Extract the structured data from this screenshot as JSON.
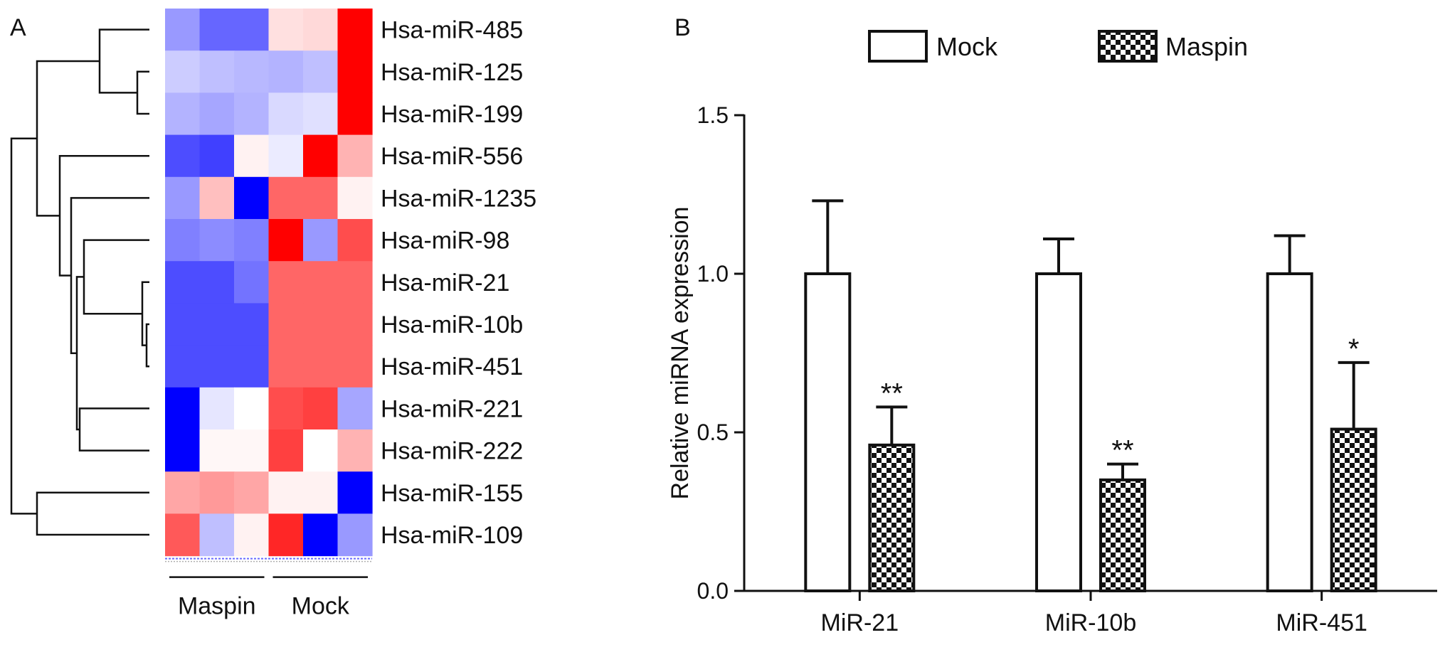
{
  "panels": {
    "a": "A",
    "b": "B"
  },
  "chart_data": [
    {
      "type": "heatmap",
      "rows": [
        "Hsa-miR-485",
        "Hsa-miR-125",
        "Hsa-miR-199",
        "Hsa-miR-556",
        "Hsa-miR-1235",
        "Hsa-miR-98",
        "Hsa-miR-21",
        "Hsa-miR-10b",
        "Hsa-miR-451",
        "Hsa-miR-221",
        "Hsa-miR-222",
        "Hsa-miR-155",
        "Hsa-miR-109"
      ],
      "column_groups": [
        {
          "name": "Maspin",
          "columns": 3
        },
        {
          "name": "Mock",
          "columns": 3
        }
      ],
      "values": [
        [
          -0.4,
          -0.6,
          -0.6,
          0.12,
          0.15,
          1.0
        ],
        [
          -0.2,
          -0.25,
          -0.28,
          -0.3,
          -0.25,
          1.0
        ],
        [
          -0.3,
          -0.35,
          -0.3,
          -0.15,
          -0.12,
          1.0
        ],
        [
          -0.7,
          -0.75,
          0.05,
          -0.08,
          1.0,
          0.3
        ],
        [
          -0.4,
          0.25,
          -1.0,
          0.6,
          0.6,
          0.05
        ],
        [
          -0.5,
          -0.45,
          -0.5,
          1.0,
          -0.4,
          0.7
        ],
        [
          -0.7,
          -0.7,
          -0.55,
          0.6,
          0.6,
          0.6
        ],
        [
          -0.7,
          -0.7,
          -0.7,
          0.6,
          0.6,
          0.6
        ],
        [
          -0.7,
          -0.7,
          -0.7,
          0.6,
          0.6,
          0.6
        ],
        [
          -1.0,
          -0.1,
          0.0,
          0.7,
          0.75,
          -0.35
        ],
        [
          -1.0,
          0.03,
          0.03,
          0.75,
          0.0,
          0.3
        ],
        [
          0.35,
          0.4,
          0.35,
          0.05,
          0.05,
          -1.0
        ],
        [
          0.65,
          -0.25,
          0.05,
          0.85,
          -1.0,
          -0.4
        ]
      ],
      "colors": {
        "low": "#0000ff",
        "mid": "#ffffff",
        "high": "#ff0000"
      },
      "dendrogram": "row clustering tree (left)"
    },
    {
      "type": "bar",
      "categories": [
        "MiR-21",
        "MiR-10b",
        "MiR-451"
      ],
      "series": [
        {
          "name": "Mock",
          "values": [
            1.0,
            1.0,
            1.0
          ],
          "errors": [
            0.23,
            0.11,
            0.12
          ],
          "fill": "white"
        },
        {
          "name": "Maspin",
          "values": [
            0.46,
            0.35,
            0.51
          ],
          "errors": [
            0.12,
            0.05,
            0.21
          ],
          "fill": "checkered"
        }
      ],
      "significance": [
        "**",
        "**",
        "*"
      ],
      "ylabel": "Relative miRNA expression",
      "xlabel": "",
      "ylim": [
        0,
        1.5
      ],
      "yticks": [
        "0.0",
        "0.5",
        "1.0",
        "1.5"
      ],
      "legend": "top"
    }
  ]
}
